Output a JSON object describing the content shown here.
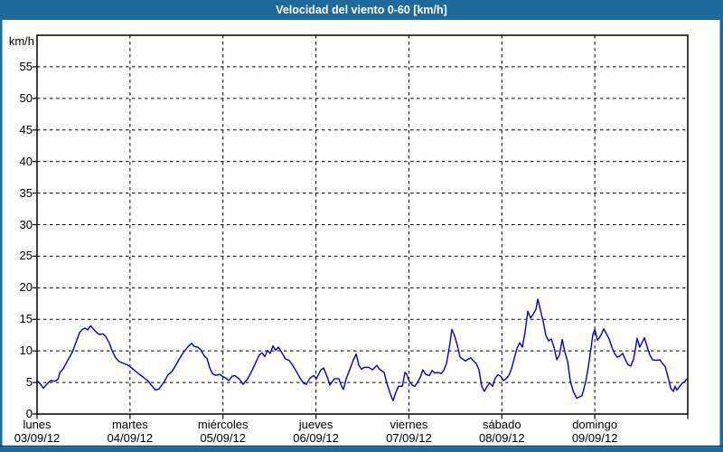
{
  "window": {
    "title": "Velocidad del viento 0-60 [km/h]"
  },
  "colors": {
    "frame_blue": "#1E6A9C",
    "frame_dark_line": "#0C3C5F",
    "line_blue": "#0000CC",
    "grid_black": "#000000",
    "content_background": "#FCFFFC",
    "plot_background": "#FDFFFD",
    "title_text": "#FFFFFF",
    "label_text": "#000000"
  },
  "chart_data": {
    "type": "line",
    "title": "Velocidad del viento 0-60 [km/h]",
    "ylabel": "km/h",
    "ylim": [
      0,
      60
    ],
    "y_ticks": [
      0,
      5,
      10,
      15,
      20,
      25,
      30,
      35,
      40,
      45,
      50,
      55
    ],
    "x_range_hours": [
      0,
      168
    ],
    "grid": "dashed-both-axes",
    "legend": "none",
    "x_days": [
      {
        "name": "lunes",
        "date": "03/09/12"
      },
      {
        "name": "martes",
        "date": "04/09/12"
      },
      {
        "name": "miércoles",
        "date": "05/09/12"
      },
      {
        "name": "jueves",
        "date": "06/09/12"
      },
      {
        "name": "viernes",
        "date": "07/09/12"
      },
      {
        "name": "sábado",
        "date": "08/09/12"
      },
      {
        "name": "domingo",
        "date": "09/09/12"
      }
    ],
    "series": [
      {
        "name": "velocidad del viento",
        "color": "#0000CC",
        "points": [
          [
            0,
            5.3
          ],
          [
            0.9,
            4.7
          ],
          [
            1.6,
            4.1
          ],
          [
            2.8,
            4.9
          ],
          [
            3.5,
            5.3
          ],
          [
            4.7,
            5.2
          ],
          [
            5.5,
            5.6
          ],
          [
            5.8,
            6.5
          ],
          [
            6.8,
            7.2
          ],
          [
            7.9,
            8.5
          ],
          [
            9.1,
            9.8
          ],
          [
            10,
            11.3
          ],
          [
            11,
            12.9
          ],
          [
            11.7,
            13.4
          ],
          [
            12.4,
            13.6
          ],
          [
            13.1,
            13.3
          ],
          [
            13.8,
            14
          ],
          [
            14.5,
            13.5
          ],
          [
            15.4,
            12.9
          ],
          [
            16.1,
            12.6
          ],
          [
            17,
            12.7
          ],
          [
            17.7,
            12.3
          ],
          [
            18.7,
            11.2
          ],
          [
            19.4,
            10
          ],
          [
            20.3,
            8.9
          ],
          [
            21.2,
            8.3
          ],
          [
            22.4,
            8
          ],
          [
            23.3,
            7.8
          ],
          [
            24,
            7.5
          ],
          [
            25.2,
            6.9
          ],
          [
            26.4,
            6.3
          ],
          [
            27.5,
            5.8
          ],
          [
            28.7,
            5.2
          ],
          [
            29.6,
            4.5
          ],
          [
            30.6,
            3.8
          ],
          [
            31.5,
            4
          ],
          [
            32.7,
            5
          ],
          [
            33.8,
            6.2
          ],
          [
            34.8,
            6.7
          ],
          [
            35.7,
            7.6
          ],
          [
            36.6,
            8.6
          ],
          [
            37.6,
            9.6
          ],
          [
            38.5,
            10.3
          ],
          [
            39.2,
            10.8
          ],
          [
            39.9,
            11.2
          ],
          [
            40.6,
            10.7
          ],
          [
            41.5,
            10.6
          ],
          [
            42.2,
            10.2
          ],
          [
            43.2,
            9.2
          ],
          [
            43.9,
            8.8
          ],
          [
            44.6,
            7.3
          ],
          [
            45.3,
            6.4
          ],
          [
            46.2,
            6.1
          ],
          [
            47.1,
            6.3
          ],
          [
            47.8,
            6
          ],
          [
            48.8,
            5.7
          ],
          [
            49.5,
            5.3
          ],
          [
            50.4,
            6
          ],
          [
            51.1,
            6.1
          ],
          [
            52.3,
            5.5
          ],
          [
            53.2,
            4.7
          ],
          [
            54.4,
            5.6
          ],
          [
            55.5,
            6.9
          ],
          [
            56.5,
            8.2
          ],
          [
            57.4,
            9.4
          ],
          [
            58.1,
            9.7
          ],
          [
            58.8,
            9.1
          ],
          [
            59.5,
            10.1
          ],
          [
            60.2,
            9.6
          ],
          [
            60.9,
            10.8
          ],
          [
            61.6,
            10.1
          ],
          [
            62.3,
            10.6
          ],
          [
            63.2,
            9.7
          ],
          [
            64.2,
            8.7
          ],
          [
            65.1,
            8.5
          ],
          [
            66,
            7.7
          ],
          [
            67,
            6.7
          ],
          [
            67.9,
            5.7
          ],
          [
            68.8,
            4.9
          ],
          [
            69.5,
            4.7
          ],
          [
            70.5,
            5.7
          ],
          [
            71.4,
            6.1
          ],
          [
            72.1,
            5.6
          ],
          [
            73.3,
            7
          ],
          [
            74,
            7.3
          ],
          [
            74.9,
            5.9
          ],
          [
            75.6,
            4.6
          ],
          [
            76.8,
            5.6
          ],
          [
            77.9,
            5.6
          ],
          [
            78.6,
            4.4
          ],
          [
            79.1,
            3.9
          ],
          [
            79.8,
            5.6
          ],
          [
            80.7,
            7
          ],
          [
            81.7,
            8.6
          ],
          [
            82.4,
            9.5
          ],
          [
            83.1,
            7.7
          ],
          [
            83.8,
            7.1
          ],
          [
            84.5,
            7.4
          ],
          [
            85.6,
            7.4
          ],
          [
            86.6,
            7
          ],
          [
            87.7,
            7.7
          ],
          [
            88.4,
            7.1
          ],
          [
            89.6,
            6.6
          ],
          [
            90.3,
            4.9
          ],
          [
            91.2,
            3.2
          ],
          [
            91.9,
            2.1
          ],
          [
            92.6,
            3.4
          ],
          [
            93.3,
            4.4
          ],
          [
            94.3,
            4.4
          ],
          [
            95,
            6.6
          ],
          [
            95.4,
            6.3
          ],
          [
            96.1,
            5.2
          ],
          [
            96.8,
            4.6
          ],
          [
            97.5,
            4.4
          ],
          [
            98.2,
            5
          ],
          [
            98.9,
            5.8
          ],
          [
            99.6,
            7
          ],
          [
            100.3,
            6.3
          ],
          [
            101.3,
            6.1
          ],
          [
            102,
            6.9
          ],
          [
            102.7,
            6.5
          ],
          [
            103.6,
            6.6
          ],
          [
            104.3,
            6.4
          ],
          [
            105,
            6.9
          ],
          [
            105.7,
            8
          ],
          [
            106.4,
            10.4
          ],
          [
            107.1,
            13.4
          ],
          [
            107.8,
            12.4
          ],
          [
            108.5,
            10.9
          ],
          [
            109.2,
            9
          ],
          [
            109.9,
            8.7
          ],
          [
            110.6,
            8.4
          ],
          [
            111.3,
            8.7
          ],
          [
            112,
            8.9
          ],
          [
            112.7,
            8.4
          ],
          [
            113.4,
            8
          ],
          [
            114.1,
            7
          ],
          [
            114.8,
            4.4
          ],
          [
            115.5,
            3.6
          ],
          [
            116.2,
            4.4
          ],
          [
            116.9,
            4.9
          ],
          [
            117.6,
            4.4
          ],
          [
            118.3,
            5.7
          ],
          [
            119,
            6.2
          ],
          [
            119.7,
            6
          ],
          [
            120.4,
            5.3
          ],
          [
            121.1,
            5.6
          ],
          [
            121.8,
            6.1
          ],
          [
            122.5,
            7.2
          ],
          [
            123.2,
            8.8
          ],
          [
            123.9,
            10.4
          ],
          [
            124.6,
            11.3
          ],
          [
            125.3,
            10.6
          ],
          [
            126,
            13
          ],
          [
            126.7,
            16.3
          ],
          [
            127.4,
            15.2
          ],
          [
            128.1,
            15.8
          ],
          [
            128.8,
            16.6
          ],
          [
            129.3,
            18.2
          ],
          [
            130,
            16.4
          ],
          [
            130.7,
            14.6
          ],
          [
            131.4,
            12.4
          ],
          [
            132.1,
            11.6
          ],
          [
            132.8,
            11.9
          ],
          [
            133.5,
            10.5
          ],
          [
            134.2,
            8.6
          ],
          [
            134.9,
            9.4
          ],
          [
            135.6,
            11.8
          ],
          [
            136.3,
            9.8
          ],
          [
            137,
            8.3
          ],
          [
            137.7,
            5.2
          ],
          [
            138.4,
            3.7
          ],
          [
            139.3,
            2.5
          ],
          [
            140,
            2.7
          ],
          [
            140.7,
            2.9
          ],
          [
            141.6,
            5
          ],
          [
            142.3,
            7.4
          ],
          [
            143,
            10.4
          ],
          [
            143.5,
            12.6
          ],
          [
            144,
            13.4
          ],
          [
            144.7,
            11.7
          ],
          [
            145.2,
            12.1
          ],
          [
            145.9,
            12.9
          ],
          [
            146.3,
            13.5
          ],
          [
            147,
            12.7
          ],
          [
            147.7,
            11.9
          ],
          [
            148.4,
            10.6
          ],
          [
            149.1,
            9.6
          ],
          [
            149.8,
            9
          ],
          [
            150.5,
            9.2
          ],
          [
            151.2,
            9.6
          ],
          [
            151.9,
            8.6
          ],
          [
            152.6,
            7.8
          ],
          [
            153.3,
            7.6
          ],
          [
            154,
            8.7
          ],
          [
            154.5,
            10.3
          ],
          [
            154.9,
            12
          ],
          [
            155.6,
            10.6
          ],
          [
            156.1,
            11.2
          ],
          [
            156.8,
            12.1
          ],
          [
            157.5,
            10.7
          ],
          [
            158.2,
            9.4
          ],
          [
            158.9,
            8.6
          ],
          [
            159.8,
            8.5
          ],
          [
            160.8,
            8.6
          ],
          [
            161.5,
            8
          ],
          [
            162.2,
            7.5
          ],
          [
            162.9,
            5.9
          ],
          [
            163.6,
            4.1
          ],
          [
            164.3,
            3.6
          ],
          [
            164.7,
            4.4
          ],
          [
            165.2,
            3.8
          ],
          [
            165.9,
            4.4
          ],
          [
            166.6,
            4.9
          ],
          [
            167.3,
            5.2
          ],
          [
            167.8,
            5.6
          ]
        ]
      }
    ]
  }
}
